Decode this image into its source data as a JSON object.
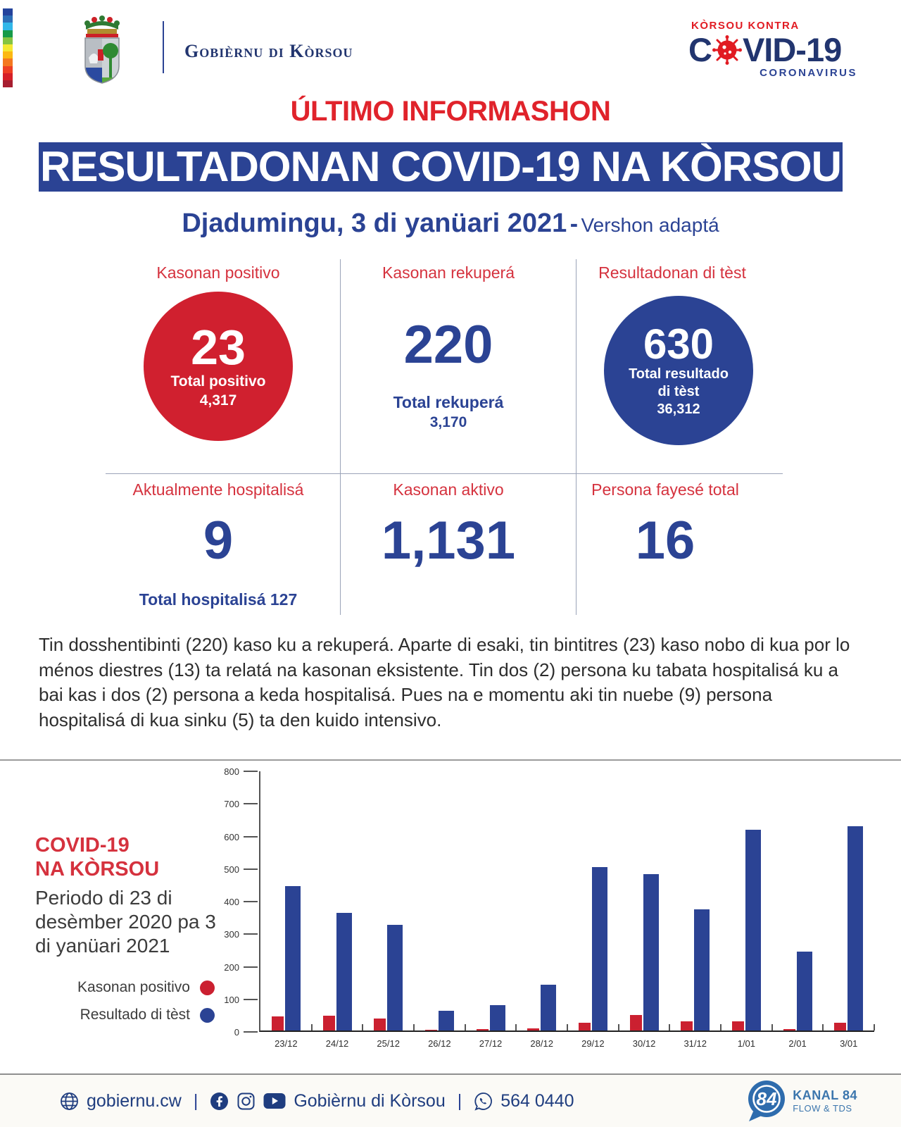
{
  "colors": {
    "red": "#d0202f",
    "label_red": "#d5323e",
    "navy": "#2b4394",
    "footer_navy": "#1f3d7f",
    "kanal_blue": "#2e6cad"
  },
  "header": {
    "gov_name": "Gobièrnu di Kòrsou",
    "logo": {
      "kontra": "KÒRSOU KONTRA",
      "c": "C",
      "vid": "VID-19",
      "sub": "CORONAVIRUS"
    },
    "icons": {
      "crest": "coat-of-arms",
      "virus": "virus-icon"
    }
  },
  "title": "ÚLTIMO INFORMASHON",
  "banner": "RESULTADONAN COVID-19 NA KÒRSOU",
  "date_line": {
    "date": "Djadumingu, 3 di yanüari 2021",
    "sep": "-",
    "note": "Vershon adaptá"
  },
  "stats": {
    "positive": {
      "label": "Kasonan positivo",
      "value": "23",
      "total_label": "Total positivo",
      "total": "4,317"
    },
    "recovered": {
      "label": "Kasonan rekuperá",
      "value": "220",
      "total_label": "Total rekuperá",
      "total": "3,170"
    },
    "tests": {
      "label": "Resultadonan di tèst",
      "value": "630",
      "total_label_1": "Total resultado",
      "total_label_2": "di tèst",
      "total": "36,312"
    },
    "hospitalized": {
      "label": "Aktualmente hospitalisá",
      "value": "9",
      "total_label": "Total hospitalisá 127"
    },
    "active": {
      "label": "Kasonan aktivo",
      "value": "1,131"
    },
    "deaths": {
      "label": "Persona fayesé total",
      "value": "16"
    }
  },
  "paragraph": "Tin dosshentibinti (220) kaso ku a rekuperá. Aparte di esaki, tin bintitres (23) kaso nobo di kua por lo ménos diestres (13) ta relatá na kasonan eksistente. Tin dos (2) persona ku tabata hospitalisá ku a bai kas i dos (2) persona a keda hospitalisá. Pues na e momentu aki tin nuebe (9) persona hospitalisá di kua sinku (5) ta den kuido intensivo.",
  "chart_section": {
    "title_1": "COVID-19",
    "title_2": "NA KÒRSOU",
    "subtitle": "Periodo di 23 di desèmber 2020 pa 3 di yanüari 2021"
  },
  "chart_data": {
    "type": "bar",
    "title": "COVID-19 NA KÒRSOU — Periodo di 23 di desèmber 2020 pa 3 di yanüari 2021",
    "categories": [
      "23/12",
      "24/12",
      "25/12",
      "26/12",
      "27/12",
      "28/12",
      "29/12",
      "30/12",
      "31/12",
      "1/01",
      "2/01",
      "3/01"
    ],
    "series": [
      {
        "name": "Kasonan positivo",
        "color": "#cb2030",
        "values": [
          43,
          46,
          36,
          2,
          4,
          7,
          25,
          48,
          28,
          28,
          4,
          23
        ]
      },
      {
        "name": "Resultado di tèst",
        "color": "#2b4394",
        "values": [
          445,
          362,
          327,
          60,
          79,
          142,
          505,
          482,
          374,
          620,
          243,
          630
        ]
      }
    ],
    "xlabel": "",
    "ylabel": "",
    "ylim": [
      0,
      800
    ],
    "yticks": [
      0,
      100,
      200,
      300,
      400,
      500,
      600,
      700,
      800
    ],
    "grid": false,
    "legend_position": "left"
  },
  "footer": {
    "website": "gobiernu.cw",
    "pipe": "|",
    "social_name": "Gobièrnu di Kòrsou",
    "phone": "564 0440",
    "icons": {
      "web": "globe-icon",
      "fb": "facebook-icon",
      "ig": "instagram-icon",
      "yt": "youtube-icon",
      "wa": "whatsapp-icon"
    },
    "kanal": {
      "number": "84",
      "name": "KANAL 84",
      "tagline": "FLOW & TDS"
    }
  }
}
